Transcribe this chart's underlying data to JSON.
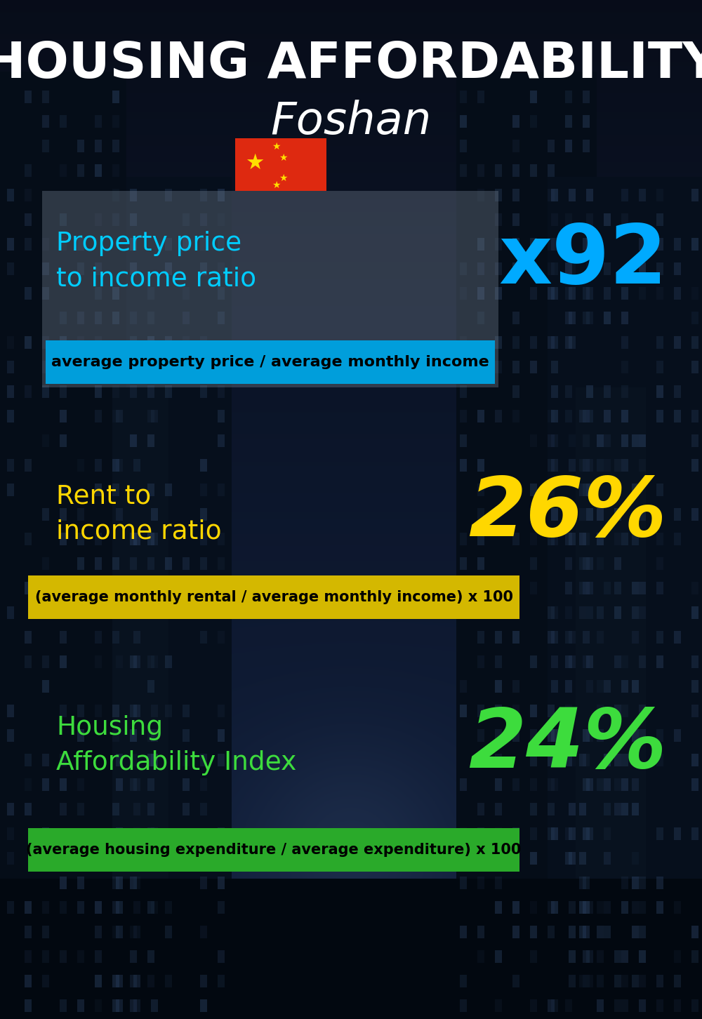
{
  "title_line1": "HOUSING AFFORDABILITY",
  "title_line2": "Foshan",
  "bg_color": "#060e1a",
  "section1_label": "Property price\nto income ratio",
  "section1_value": "x92",
  "section1_label_color": "#00ccff",
  "section1_value_color": "#00aaff",
  "section1_banner_text": "average property price / average monthly income",
  "section1_banner_bg": "#009edb",
  "section2_label": "Rent to\nincome ratio",
  "section2_value": "26%",
  "section2_label_color": "#ffd700",
  "section2_value_color": "#ffd700",
  "section2_banner_text": "(average monthly rental / average monthly income) x 100",
  "section2_banner_bg": "#d4b800",
  "section3_label": "Housing\nAffordability Index",
  "section3_value": "24%",
  "section3_label_color": "#3ddc3d",
  "section3_value_color": "#3ddc3d",
  "section3_banner_text": "(average housing expenditure / average expenditure) x 100",
  "section3_banner_bg": "#2aaa2a",
  "title_color": "#ffffff",
  "banner_text_color": "#000000",
  "foshan_color": "#ffffff"
}
